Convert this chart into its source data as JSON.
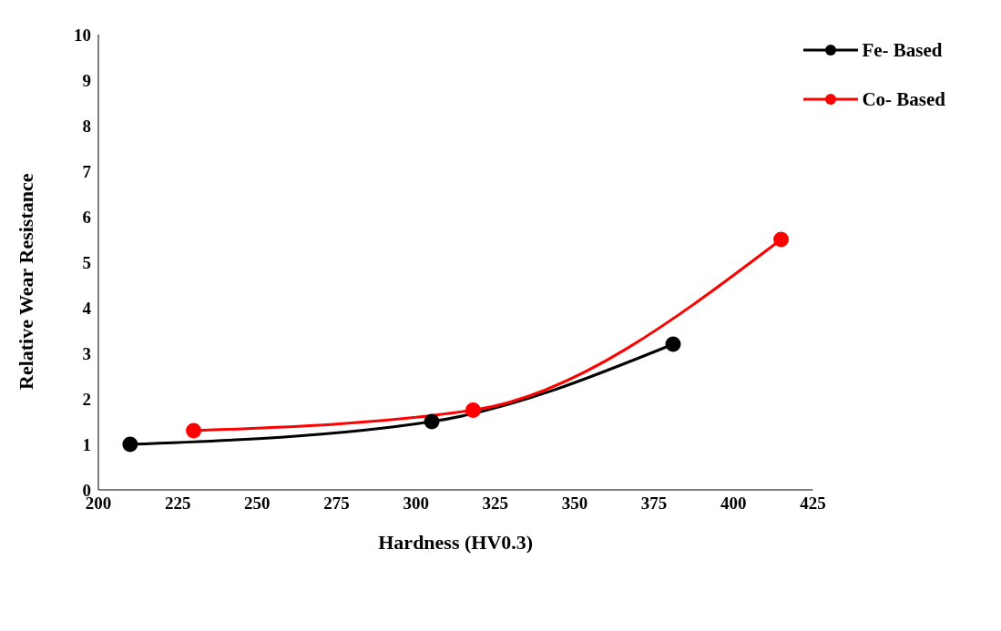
{
  "chart_data": {
    "type": "line",
    "xlabel": "Hardness (HV0.3)",
    "ylabel": "Relative Wear Resistance",
    "xlim": [
      200,
      425
    ],
    "xticks": [
      200,
      225,
      250,
      275,
      300,
      325,
      350,
      375,
      400,
      425
    ],
    "ylim": [
      0,
      10
    ],
    "yticks": [
      0,
      1,
      2,
      3,
      4,
      5,
      6,
      7,
      8,
      9,
      10
    ],
    "grid": false,
    "legend": "top right",
    "marker": "circle",
    "line_style": "solid",
    "series": [
      {
        "name": "Fe- Based",
        "color": "#000000",
        "x": [
          210,
          305,
          381
        ],
        "values": [
          1.0,
          1.5,
          3.2
        ]
      },
      {
        "name": "Co- Based",
        "color": "#ff0000",
        "x": [
          230,
          318,
          415
        ],
        "values": [
          1.3,
          1.75,
          5.5
        ]
      }
    ]
  }
}
